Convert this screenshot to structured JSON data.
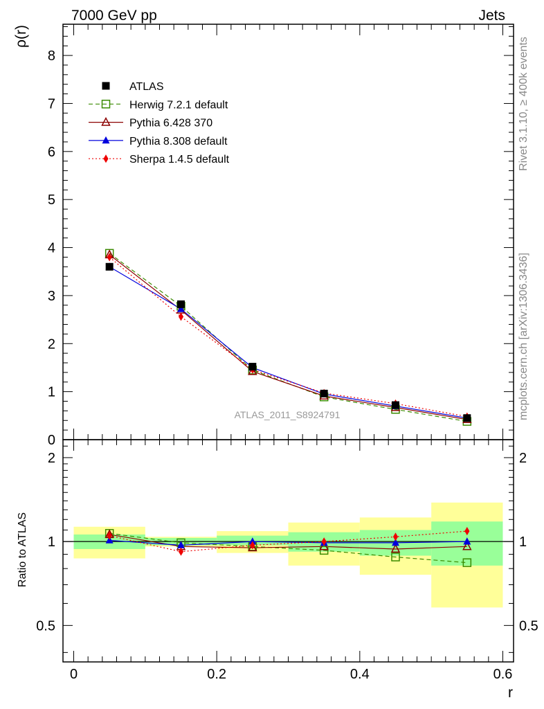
{
  "header": {
    "left_title": "7000 GeV pp",
    "right_title": "Jets"
  },
  "side_text": {
    "rivet": "Rivet 3.1.10, ≥ 400k events",
    "mcplots": "mcplots.cern.ch [arXiv:1306.3436]"
  },
  "watermark": "ATLAS_2011_S8924791",
  "colors": {
    "atlas": "#000000",
    "herwig": "#3a8a00",
    "pythia6": "#8b0000",
    "pythia8": "#0000dd",
    "sherpa": "#ee0000",
    "band_inner": "#99ff99",
    "band_outer": "#ffff99"
  },
  "chart_data": [
    {
      "type": "line",
      "title": "",
      "xlabel": "",
      "ylabel": "ρ(r)",
      "xlim": [
        -0.015,
        0.615
      ],
      "ylim": [
        0,
        8.65
      ],
      "y_ticks": [
        0,
        1,
        2,
        3,
        4,
        5,
        6,
        7,
        8
      ],
      "y_tick_labels": [
        "0",
        "1",
        "2",
        "3",
        "4",
        "5",
        "6",
        "7",
        "8"
      ],
      "x": [
        0.05,
        0.15,
        0.25,
        0.35,
        0.45,
        0.55
      ],
      "legend": [
        "ATLAS",
        "Herwig 7.2.1 default",
        "Pythia 6.428 370",
        "Pythia 8.308 default",
        "Sherpa 1.4.5 default"
      ],
      "legend_position": "top-left",
      "series": [
        {
          "name": "ATLAS",
          "values": [
            3.6,
            2.82,
            1.52,
            0.96,
            0.72,
            0.45
          ]
        },
        {
          "name": "Herwig 7.2.1 default",
          "values": [
            3.88,
            2.78,
            1.45,
            0.89,
            0.63,
            0.38
          ]
        },
        {
          "name": "Pythia 6.428 370",
          "values": [
            3.85,
            2.7,
            1.42,
            0.91,
            0.67,
            0.42
          ]
        },
        {
          "name": "Pythia 8.308 default",
          "values": [
            3.6,
            2.72,
            1.5,
            0.95,
            0.7,
            0.45
          ]
        },
        {
          "name": "Sherpa 1.4.5 default",
          "values": [
            3.8,
            2.56,
            1.46,
            0.97,
            0.75,
            0.48
          ]
        }
      ]
    },
    {
      "type": "line",
      "title": "",
      "xlabel": "r",
      "ylabel": "Ratio to ATLAS",
      "xlim": [
        -0.015,
        0.615
      ],
      "ylim": [
        0.37,
        2.32
      ],
      "y_ticks": [
        0.5,
        1,
        2
      ],
      "y_tick_labels": [
        "0.5",
        "1",
        "2"
      ],
      "x_ticks": [
        0,
        0.2,
        0.4,
        0.6
      ],
      "x_tick_labels": [
        "0",
        "0.2",
        "0.4",
        "0.6"
      ],
      "x": [
        0.05,
        0.15,
        0.25,
        0.35,
        0.45,
        0.55
      ],
      "bands": {
        "edges": [
          0,
          0.1,
          0.2,
          0.3,
          0.4,
          0.5,
          0.6
        ],
        "inner_low": [
          0.94,
          0.97,
          0.97,
          0.92,
          0.89,
          0.82
        ],
        "inner_high": [
          1.06,
          1.03,
          1.05,
          1.08,
          1.1,
          1.18
        ],
        "outer_low": [
          0.87,
          0.96,
          0.91,
          0.82,
          0.76,
          0.58
        ],
        "outer_high": [
          1.13,
          1.04,
          1.09,
          1.17,
          1.22,
          1.38
        ]
      },
      "series": [
        {
          "name": "Herwig 7.2.1 default",
          "values": [
            1.07,
            0.99,
            0.96,
            0.93,
            0.88,
            0.84
          ]
        },
        {
          "name": "Pythia 6.428 370",
          "values": [
            1.06,
            0.96,
            0.95,
            0.96,
            0.94,
            0.96
          ]
        },
        {
          "name": "Pythia 8.308 default",
          "values": [
            1.01,
            0.97,
            1.0,
            0.99,
            0.99,
            1.0
          ]
        },
        {
          "name": "Sherpa 1.4.5 default",
          "values": [
            1.05,
            0.92,
            0.97,
            1.0,
            1.04,
            1.09
          ]
        }
      ]
    }
  ]
}
